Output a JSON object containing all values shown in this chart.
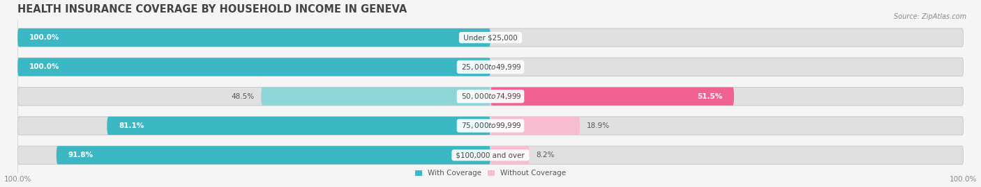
{
  "title": "HEALTH INSURANCE COVERAGE BY HOUSEHOLD INCOME IN GENEVA",
  "source": "Source: ZipAtlas.com",
  "categories": [
    "Under $25,000",
    "$25,000 to $49,999",
    "$50,000 to $74,999",
    "$75,000 to $99,999",
    "$100,000 and over"
  ],
  "with_coverage": [
    100.0,
    100.0,
    48.5,
    81.1,
    91.8
  ],
  "without_coverage": [
    0.0,
    0.0,
    51.5,
    18.9,
    8.2
  ],
  "color_with_dark": "#3bb8c3",
  "color_with_light": "#8ed5d8",
  "color_without_dark": "#f06292",
  "color_without_light": "#f8bbd0",
  "background_color": "#f5f5f5",
  "bar_bg_color": "#e0e0e0",
  "title_fontsize": 10.5,
  "label_fontsize": 7.5,
  "value_fontsize": 7.5,
  "tick_fontsize": 7.5,
  "legend_fontsize": 7.5,
  "source_fontsize": 7,
  "xlim_left": -100,
  "xlim_right": 100,
  "bar_height": 0.62,
  "rounding": 0.3
}
